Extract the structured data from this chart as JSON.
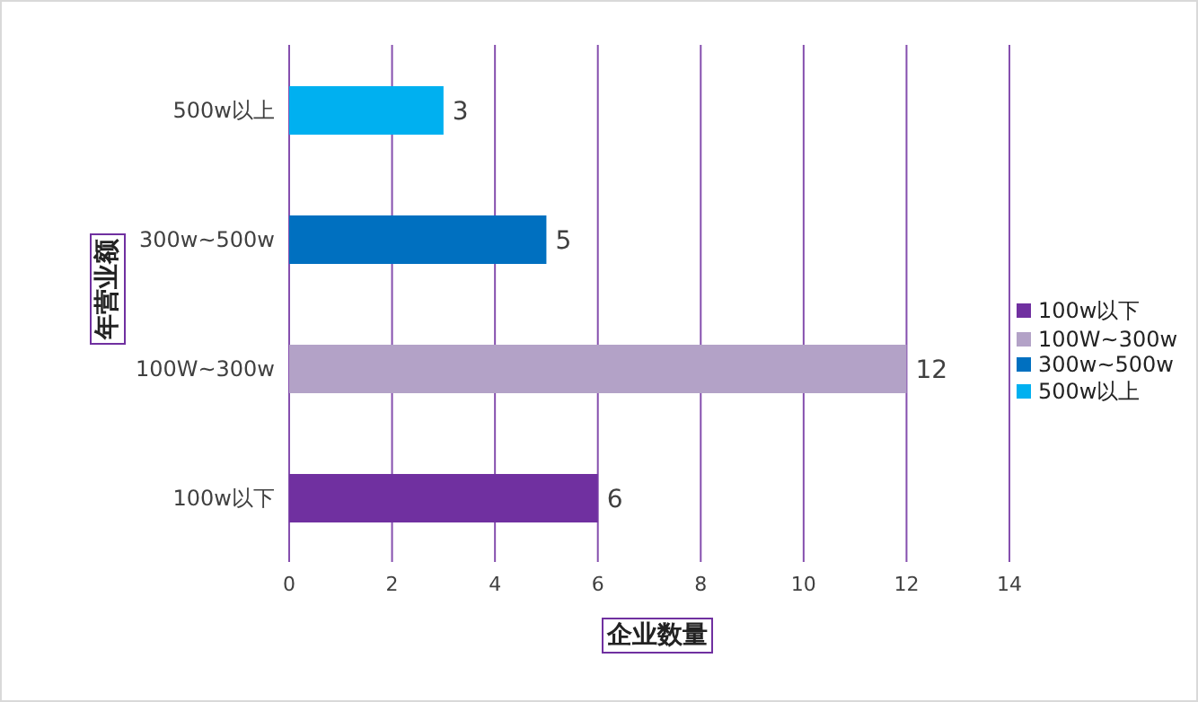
{
  "chart_data": {
    "type": "bar",
    "orientation": "horizontal",
    "stacked": true,
    "categories": [
      "500w以上",
      "300w~500w",
      "100W~300w",
      "100w以下"
    ],
    "series": [
      {
        "name": "100w以下",
        "color": "#7030a0",
        "values": [
          null,
          null,
          null,
          6
        ]
      },
      {
        "name": "100W~300w",
        "color": "#b3a2c7",
        "values": [
          null,
          null,
          12,
          null
        ]
      },
      {
        "name": "300w~500w",
        "color": "#0070c0",
        "values": [
          null,
          5,
          null,
          null
        ]
      },
      {
        "name": "500w以上",
        "color": "#00b0f0",
        "values": [
          3,
          null,
          null,
          null
        ]
      }
    ],
    "xlim": [
      0,
      14
    ],
    "xticks": [
      0,
      2,
      4,
      6,
      8,
      10,
      12,
      14
    ],
    "xlabel": "企业数量",
    "ylabel": "年营业额",
    "grid": "x",
    "legend": "right",
    "data_labels": true
  }
}
